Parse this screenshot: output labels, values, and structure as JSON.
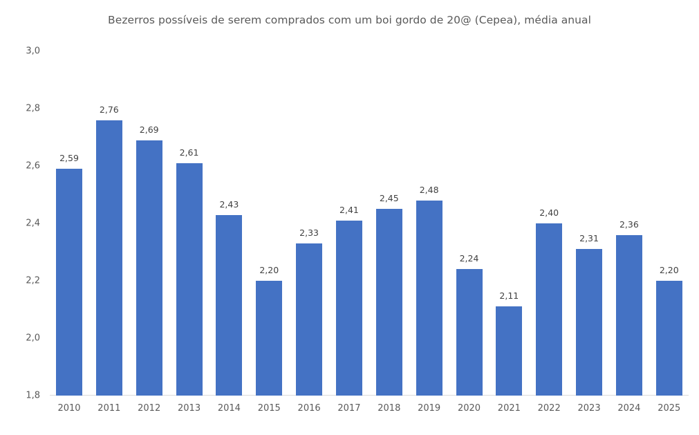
{
  "chart_data": {
    "type": "bar",
    "title": "Bezerros possíveis de serem comprados com um boi gordo de 20@ (Cepea), média anual",
    "xlabel": "",
    "ylabel": "",
    "ylim": [
      1.8,
      3.0
    ],
    "yticks": [
      "3,0",
      "2,8",
      "2,6",
      "2,4",
      "2,2",
      "2,0",
      "1,8"
    ],
    "ytick_values": [
      3.0,
      2.8,
      2.6,
      2.4,
      2.2,
      2.0,
      1.8
    ],
    "grid": false,
    "legend": null,
    "bar_color": "#4472c4",
    "categories": [
      "2010",
      "2011",
      "2012",
      "2013",
      "2014",
      "2015",
      "2016",
      "2017",
      "2018",
      "2019",
      "2020",
      "2021",
      "2022",
      "2023",
      "2024",
      "2025"
    ],
    "values": [
      2.59,
      2.76,
      2.69,
      2.61,
      2.43,
      2.2,
      2.33,
      2.41,
      2.45,
      2.48,
      2.24,
      2.11,
      2.4,
      2.31,
      2.36,
      2.2
    ],
    "value_labels": [
      "2,59",
      "2,76",
      "2,69",
      "2,61",
      "2,43",
      "2,20",
      "2,33",
      "2,41",
      "2,45",
      "2,48",
      "2,24",
      "2,11",
      "2,40",
      "2,31",
      "2,36",
      "2,20"
    ]
  }
}
